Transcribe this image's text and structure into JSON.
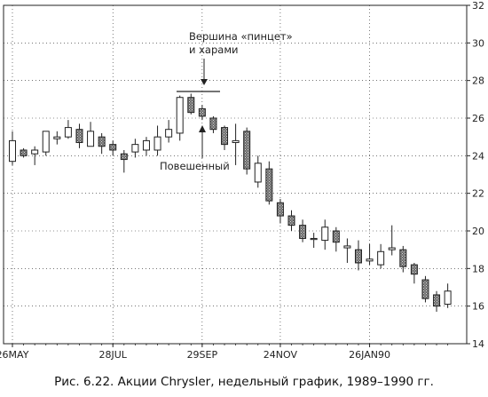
{
  "chart_data": {
    "type": "candlestick",
    "caption": "Рис. 6.22. Акции Chrysler, недельный график, 1989–1990 гг.",
    "x_tick_labels": [
      "26MAY",
      "28JUL",
      "29SEP",
      "24NOV",
      "26JAN90"
    ],
    "x_tick_index": [
      0,
      9,
      17,
      24,
      32
    ],
    "ylim": [
      14,
      32
    ],
    "y_ticks": [
      14,
      16,
      18,
      20,
      22,
      24,
      26,
      28,
      30,
      32
    ],
    "grid": true,
    "annotations": [
      {
        "text_lines": [
          "Вершина «пинцет»",
          "и харами"
        ],
        "target_index": 14
      },
      {
        "text_lines": [
          "Повешенный"
        ],
        "target_index": 14
      }
    ],
    "candles": [
      {
        "open": 23.7,
        "close": 24.8,
        "high": 25.3,
        "low": 23.5,
        "dark": false
      },
      {
        "open": 24.3,
        "close": 24.0,
        "high": 24.4,
        "low": 23.9,
        "dark": true
      },
      {
        "open": 24.3,
        "close": 24.1,
        "high": 24.5,
        "low": 23.5,
        "dark": false
      },
      {
        "open": 24.2,
        "close": 25.3,
        "high": 25.3,
        "low": 24.0,
        "dark": false
      },
      {
        "open": 25.0,
        "close": 24.9,
        "high": 25.3,
        "low": 24.6,
        "dark": false
      },
      {
        "open": 25.0,
        "close": 25.5,
        "high": 25.9,
        "low": 24.9,
        "dark": false
      },
      {
        "open": 25.4,
        "close": 24.7,
        "high": 25.7,
        "low": 24.4,
        "dark": true
      },
      {
        "open": 24.5,
        "close": 25.3,
        "high": 25.8,
        "low": 24.5,
        "dark": false
      },
      {
        "open": 25.0,
        "close": 24.5,
        "high": 25.2,
        "low": 24.1,
        "dark": true
      },
      {
        "open": 24.6,
        "close": 24.3,
        "high": 24.8,
        "low": 24.0,
        "dark": true
      },
      {
        "open": 24.1,
        "close": 23.8,
        "high": 24.3,
        "low": 23.1,
        "dark": true
      },
      {
        "open": 24.2,
        "close": 24.6,
        "high": 24.9,
        "low": 23.9,
        "dark": false
      },
      {
        "open": 24.3,
        "close": 24.8,
        "high": 25.0,
        "low": 24.0,
        "dark": false
      },
      {
        "open": 24.3,
        "close": 25.0,
        "high": 25.6,
        "low": 24.0,
        "dark": false
      },
      {
        "open": 25.0,
        "close": 25.4,
        "high": 25.9,
        "low": 24.7,
        "dark": false
      },
      {
        "open": 25.2,
        "close": 27.1,
        "high": 27.2,
        "low": 24.8,
        "dark": false
      },
      {
        "open": 27.1,
        "close": 26.3,
        "high": 27.3,
        "low": 26.2,
        "dark": true
      },
      {
        "open": 26.5,
        "close": 26.1,
        "high": 26.7,
        "low": 25.9,
        "dark": true
      },
      {
        "open": 26.0,
        "close": 25.4,
        "high": 26.1,
        "low": 25.2,
        "dark": true
      },
      {
        "open": 25.5,
        "close": 24.6,
        "high": 25.6,
        "low": 24.3,
        "dark": true
      },
      {
        "open": 24.8,
        "close": 24.7,
        "high": 25.7,
        "low": 23.5,
        "dark": false
      },
      {
        "open": 25.3,
        "close": 23.3,
        "high": 25.5,
        "low": 23.0,
        "dark": true
      },
      {
        "open": 22.6,
        "close": 23.6,
        "high": 24.0,
        "low": 22.3,
        "dark": false
      },
      {
        "open": 23.3,
        "close": 21.6,
        "high": 23.7,
        "low": 21.4,
        "dark": true
      },
      {
        "open": 21.5,
        "close": 20.8,
        "high": 21.7,
        "low": 20.4,
        "dark": true
      },
      {
        "open": 20.8,
        "close": 20.3,
        "high": 21.1,
        "low": 20.0,
        "dark": true
      },
      {
        "open": 20.3,
        "close": 19.6,
        "high": 20.6,
        "low": 19.4,
        "dark": true
      },
      {
        "open": 19.6,
        "close": 19.6,
        "high": 19.9,
        "low": 19.1,
        "dark": false
      },
      {
        "open": 19.5,
        "close": 20.2,
        "high": 20.6,
        "low": 19.0,
        "dark": false
      },
      {
        "open": 20.0,
        "close": 19.4,
        "high": 20.2,
        "low": 18.9,
        "dark": true
      },
      {
        "open": 19.2,
        "close": 19.1,
        "high": 19.6,
        "low": 18.3,
        "dark": false
      },
      {
        "open": 19.0,
        "close": 18.3,
        "high": 19.5,
        "low": 17.9,
        "dark": true
      },
      {
        "open": 18.5,
        "close": 18.4,
        "high": 19.3,
        "low": 18.2,
        "dark": false
      },
      {
        "open": 18.2,
        "close": 18.9,
        "high": 19.3,
        "low": 18.0,
        "dark": false
      },
      {
        "open": 19.1,
        "close": 19.0,
        "high": 20.3,
        "low": 18.7,
        "dark": false
      },
      {
        "open": 19.0,
        "close": 18.1,
        "high": 19.2,
        "low": 17.8,
        "dark": true
      },
      {
        "open": 18.2,
        "close": 17.7,
        "high": 18.3,
        "low": 17.2,
        "dark": true
      },
      {
        "open": 17.4,
        "close": 16.4,
        "high": 17.6,
        "low": 16.2,
        "dark": true
      },
      {
        "open": 16.6,
        "close": 16.0,
        "high": 16.8,
        "low": 15.7,
        "dark": true
      },
      {
        "open": 16.1,
        "close": 16.8,
        "high": 17.2,
        "low": 15.9,
        "dark": false
      }
    ]
  }
}
